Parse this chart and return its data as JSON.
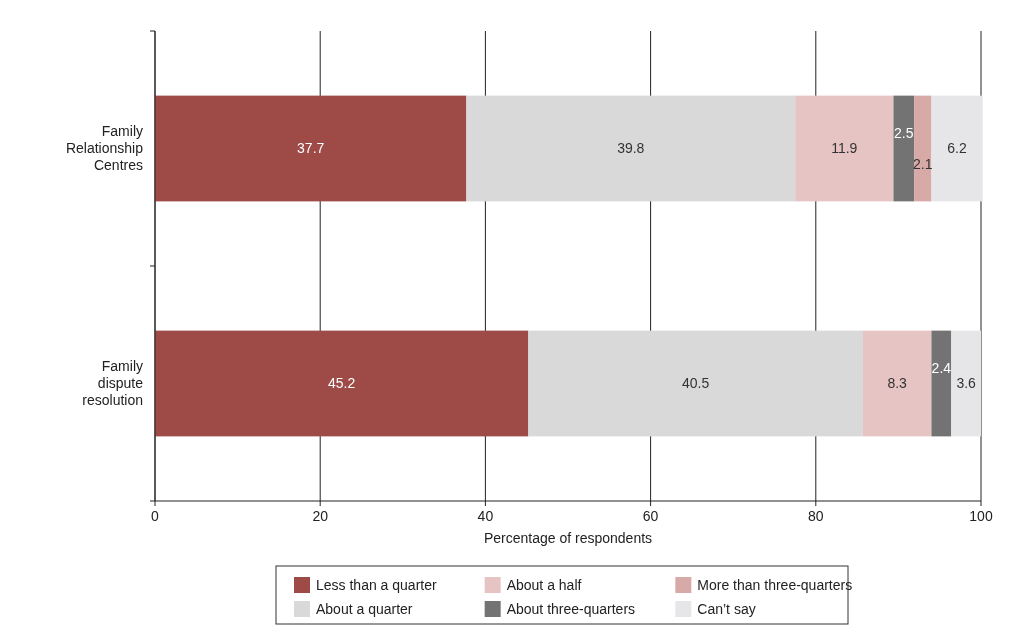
{
  "chart_data": {
    "type": "bar",
    "orientation": "horizontal",
    "stacked": true,
    "xlabel": "Percentage of respondents",
    "categories": [
      "Family Relationship Centres",
      "Family dispute resolution"
    ],
    "series": [
      {
        "name": "Less than a quarter",
        "color": "#9e4a47",
        "values": [
          37.7,
          45.2
        ]
      },
      {
        "name": "About a quarter",
        "color": "#d9d9d9",
        "values": [
          39.8,
          40.5
        ]
      },
      {
        "name": "About a half",
        "color": "#e6c4c3",
        "values": [
          11.9,
          8.3
        ]
      },
      {
        "name": "About three-quarters",
        "color": "#737373",
        "values": [
          2.5,
          2.4
        ]
      },
      {
        "name": "More than three-quarters",
        "color": "#d7aaa8",
        "values": [
          2.1,
          null
        ]
      },
      {
        "name": "Can’t say",
        "color": "#e6e6e8",
        "values": [
          6.2,
          3.6
        ]
      }
    ],
    "xlim": [
      0,
      100
    ],
    "xticks": [
      0,
      20,
      40,
      60,
      80,
      100
    ],
    "grid": "x",
    "legend": "bottom",
    "data_labels": true
  }
}
